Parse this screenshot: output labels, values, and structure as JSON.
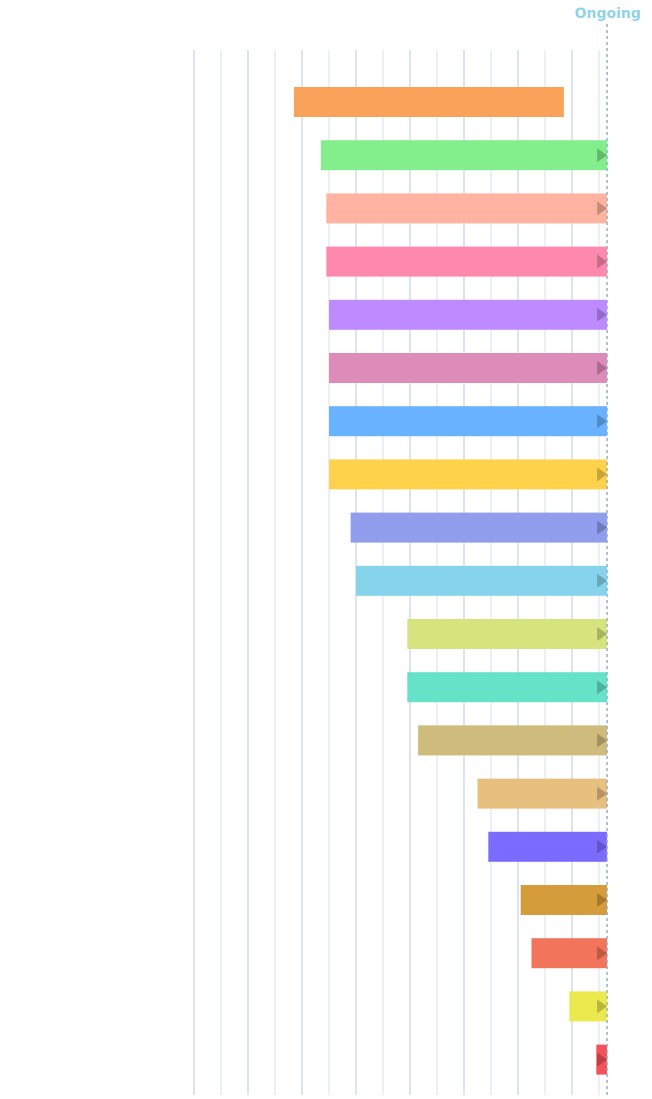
{
  "chart_data": {
    "type": "bar",
    "orientation": "horizontal-timeline",
    "title": "",
    "xlabel": "",
    "ylabel": "",
    "xlim": [
      0,
      15.3
    ],
    "grid": true,
    "grid_step": 1,
    "ongoing_value": 15.3,
    "ongoing_label": "Ongoing",
    "ongoing_color": "#8ed3ea",
    "series": [
      {
        "start": 3.7,
        "end": 13.7,
        "ongoing": false,
        "color": "#f9a35a"
      },
      {
        "start": 4.7,
        "end": 15.3,
        "ongoing": true,
        "color": "#82ee8c"
      },
      {
        "start": 4.9,
        "end": 15.3,
        "ongoing": true,
        "color": "#ffb3a0"
      },
      {
        "start": 4.9,
        "end": 15.3,
        "ongoing": true,
        "color": "#ff88ad"
      },
      {
        "start": 5.0,
        "end": 15.3,
        "ongoing": true,
        "color": "#bd8bff"
      },
      {
        "start": 5.0,
        "end": 15.3,
        "ongoing": true,
        "color": "#dd8bb8"
      },
      {
        "start": 5.0,
        "end": 15.3,
        "ongoing": true,
        "color": "#68b2ff"
      },
      {
        "start": 5.0,
        "end": 15.3,
        "ongoing": true,
        "color": "#ffd24b"
      },
      {
        "start": 5.8,
        "end": 15.3,
        "ongoing": true,
        "color": "#919ded"
      },
      {
        "start": 6.0,
        "end": 15.3,
        "ongoing": true,
        "color": "#86d4ec"
      },
      {
        "start": 7.9,
        "end": 15.3,
        "ongoing": true,
        "color": "#d6e47e"
      },
      {
        "start": 7.9,
        "end": 15.3,
        "ongoing": true,
        "color": "#66e2c9"
      },
      {
        "start": 8.3,
        "end": 15.3,
        "ongoing": true,
        "color": "#cfbb7b"
      },
      {
        "start": 10.5,
        "end": 15.3,
        "ongoing": true,
        "color": "#e7bf7f"
      },
      {
        "start": 10.9,
        "end": 15.3,
        "ongoing": true,
        "color": "#7b6cff"
      },
      {
        "start": 12.1,
        "end": 15.3,
        "ongoing": true,
        "color": "#d59c3c"
      },
      {
        "start": 12.5,
        "end": 15.3,
        "ongoing": true,
        "color": "#f2745a"
      },
      {
        "start": 13.9,
        "end": 15.3,
        "ongoing": true,
        "color": "#ece94f"
      },
      {
        "start": 14.9,
        "end": 15.3,
        "ongoing": true,
        "color": "#f2525a"
      }
    ]
  }
}
